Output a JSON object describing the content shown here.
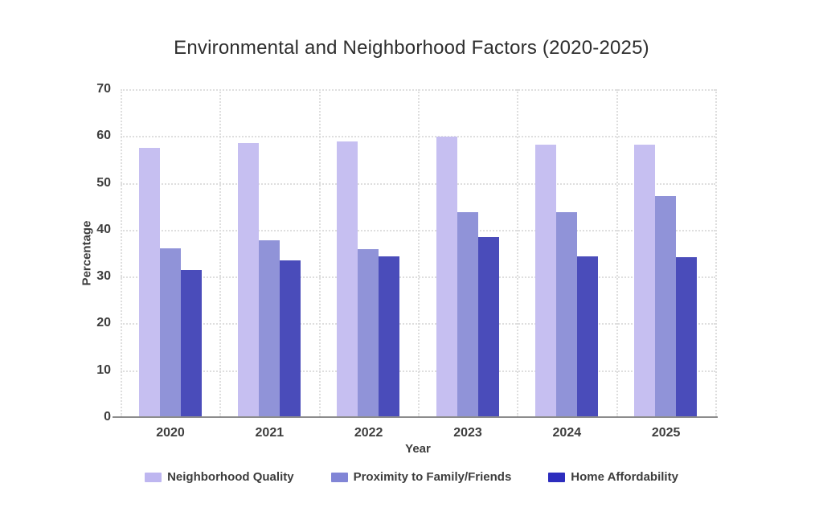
{
  "chart_data": {
    "type": "bar",
    "title": "Environmental and Neighborhood Factors (2020-2025)",
    "xlabel": "Year",
    "ylabel": "Percentage",
    "ylim": [
      0,
      70
    ],
    "yticks": [
      0,
      10,
      20,
      30,
      40,
      50,
      60,
      70
    ],
    "grid": "dotted",
    "legend_position": "bottom",
    "categories": [
      "2020",
      "2021",
      "2022",
      "2023",
      "2024",
      "2025"
    ],
    "series": [
      {
        "name": "Neighborhood Quality",
        "color": "#c6bff1",
        "swatch_color": "#beb6f0",
        "values": [
          57.5,
          58.5,
          58.8,
          59.8,
          58.2,
          58.2
        ]
      },
      {
        "name": "Proximity to Family/Friends",
        "color": "#9093d8",
        "swatch_color": "#8185d6",
        "values": [
          36.0,
          37.7,
          35.9,
          43.8,
          43.8,
          47.2
        ]
      },
      {
        "name": "Home Affordability",
        "color": "#4a4cba",
        "swatch_color": "#2d2dbe",
        "values": [
          31.4,
          33.5,
          34.3,
          38.5,
          34.3,
          34.2
        ]
      }
    ]
  }
}
